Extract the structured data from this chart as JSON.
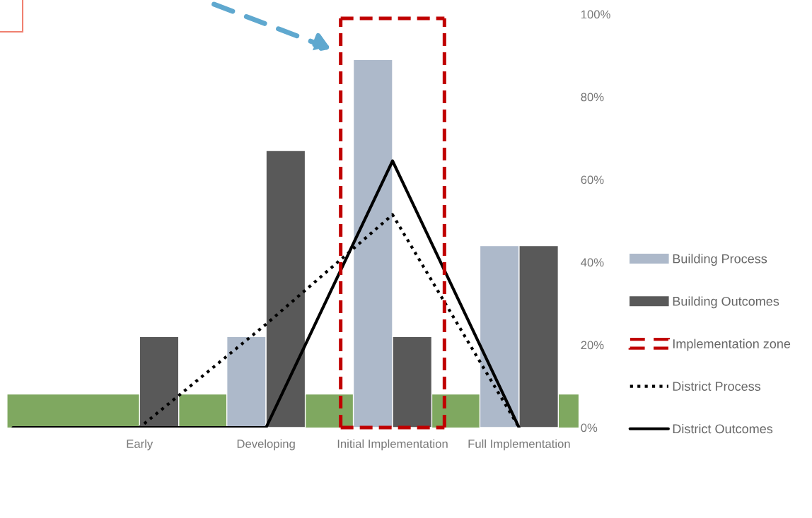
{
  "chart_data": {
    "type": "bar",
    "categories": [
      null,
      "Early",
      "Developing",
      "Initial Implementation",
      "Full Implementation"
    ],
    "series": [
      {
        "name": "Building Process",
        "color": "#adb9ca",
        "values": [
          null,
          null,
          22,
          89,
          44
        ]
      },
      {
        "name": "Building Outcomes",
        "color": "#595959",
        "values": [
          null,
          22,
          67,
          22,
          44
        ]
      },
      {
        "name": "District Process",
        "type": "line",
        "color": "#000000",
        "line_style": "dotted",
        "values": [
          0,
          0,
          25,
          51.5,
          0
        ]
      },
      {
        "name": "District Outcomes",
        "type": "line",
        "color": "#000000",
        "line_style": "solid",
        "values": [
          0,
          0,
          0,
          64.5,
          0
        ]
      }
    ],
    "bands": [
      {
        "axis": "y",
        "from": 0,
        "to": 8,
        "color": "#7fa860"
      }
    ],
    "annotations": [
      "Implementation zone"
    ],
    "ylim": [
      0,
      100
    ],
    "yticks": [
      {
        "value": 0,
        "label": "0%"
      },
      {
        "value": 20,
        "label": "20%"
      },
      {
        "value": 40,
        "label": "40%"
      },
      {
        "value": 60,
        "label": "60%"
      },
      {
        "value": 80,
        "label": "80%"
      },
      {
        "value": 100,
        "label": "100%"
      }
    ],
    "grid": false,
    "legend": "right"
  }
}
